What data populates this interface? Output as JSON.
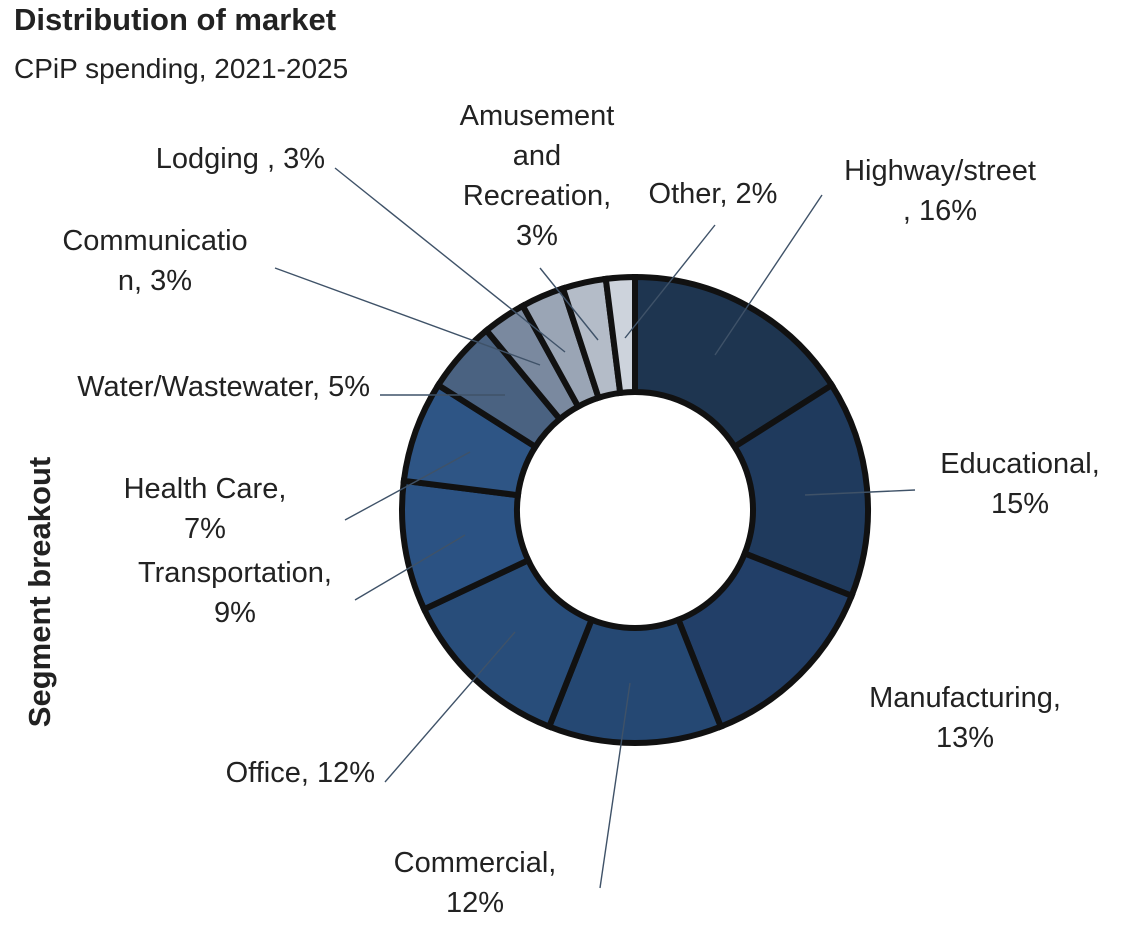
{
  "chart_data": {
    "type": "donut",
    "title": "Distribution of market",
    "subtitle": "CPiP spending, 2021-2025",
    "y_axis_label": "Segment breakout",
    "categories": [
      "Highway/street\n, 16%",
      "Educational,\n15%",
      "Manufacturing,\n13%",
      "Commercial,\n12%",
      "Office, 12%",
      "Transportation,\n9%",
      "Health Care,\n7%",
      "Water/Wastewater, 5%",
      "Communicatio\nn, 3%",
      "Lodging , 3%",
      "Amusement\nand\nRecreation,\n3%",
      "Other, 2%"
    ],
    "values": [
      16,
      15,
      13,
      12,
      12,
      9,
      7,
      5,
      3,
      3,
      3,
      2
    ],
    "colors": [
      "#1e3550",
      "#1f3a5d",
      "#223f68",
      "#254873",
      "#284d7a",
      "#2b5283",
      "#2e5585",
      "#4a6281",
      "#7a899f",
      "#9aa5b5",
      "#b4bcc8",
      "#cdd3dc"
    ]
  }
}
